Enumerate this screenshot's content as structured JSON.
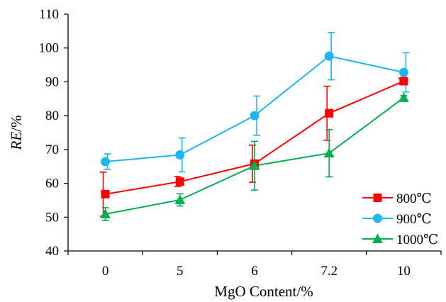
{
  "chart_data": {
    "type": "line",
    "categories": [
      "0",
      "5",
      "6",
      "7.2",
      "10"
    ],
    "xlabel": "MgO Content/%",
    "ylabel": "RE/%",
    "ylim": [
      40,
      110
    ],
    "yticks": [
      40,
      50,
      60,
      70,
      80,
      90,
      100,
      110
    ],
    "grid": false,
    "legend_position": "bottom-right",
    "series": [
      {
        "name": "800℃",
        "color": "#ff0000",
        "marker": "square",
        "values": [
          56.8,
          60.5,
          65.8,
          80.7,
          90.2
        ],
        "errors": [
          6.5,
          1.5,
          5.5,
          8.0,
          0.8
        ]
      },
      {
        "name": "900℃",
        "color": "#1fb5f0",
        "marker": "circle",
        "values": [
          66.4,
          68.4,
          80.0,
          97.6,
          92.8
        ],
        "errors": [
          2.3,
          5.0,
          5.8,
          7.0,
          5.8
        ]
      },
      {
        "name": "1000℃",
        "color": "#00b050",
        "marker": "triangle",
        "values": [
          50.9,
          55.1,
          65.2,
          68.9,
          85.3
        ],
        "errors": [
          1.9,
          1.8,
          7.2,
          7.0,
          0.6
        ]
      }
    ]
  }
}
